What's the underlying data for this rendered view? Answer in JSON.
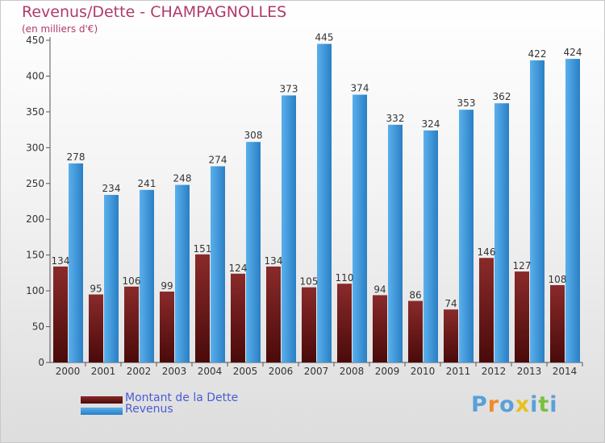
{
  "title": "Revenus/Dette - CHAMPAGNOLLES",
  "subtitle": "(en milliers d'€)",
  "brand": "Proxiti",
  "colors": {
    "debt_dark": "#4a0a0a",
    "debt_light": "#8a2a2a",
    "revenue_dark": "#2a7fc4",
    "revenue_light": "#5ab0ec",
    "title": "#b03a6a",
    "legend_text": "#4a5bd6"
  },
  "legend": {
    "items": [
      {
        "label": "Montant de la Dette",
        "series": "debt"
      },
      {
        "label": "Revenus",
        "series": "revenue"
      }
    ],
    "position": "bottom-left"
  },
  "chart_data": {
    "type": "bar",
    "categories": [
      "2000",
      "2001",
      "2002",
      "2003",
      "2004",
      "2005",
      "2006",
      "2007",
      "2008",
      "2009",
      "2010",
      "2011",
      "2012",
      "2013",
      "2014"
    ],
    "series": [
      {
        "name": "Montant de la Dette",
        "key": "debt",
        "values": [
          134,
          95,
          106,
          99,
          151,
          124,
          134,
          105,
          110,
          94,
          86,
          74,
          146,
          127,
          108
        ]
      },
      {
        "name": "Revenus",
        "key": "revenue",
        "values": [
          278,
          234,
          241,
          248,
          274,
          308,
          373,
          445,
          374,
          332,
          324,
          353,
          362,
          422,
          424
        ]
      }
    ],
    "ylim": [
      0,
      450
    ],
    "yticks": [
      0,
      50,
      100,
      150,
      200,
      250,
      300,
      350,
      400,
      450
    ],
    "grid": false,
    "xlabel": "",
    "ylabel": ""
  }
}
